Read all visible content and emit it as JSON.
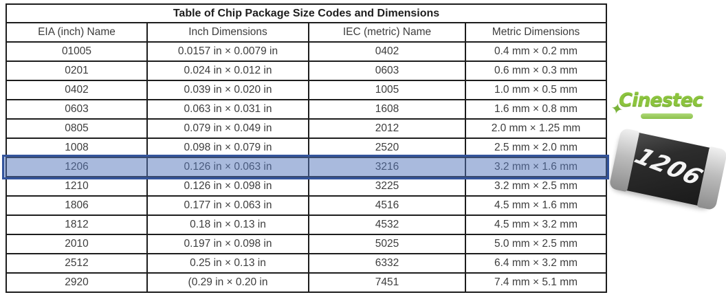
{
  "table": {
    "title": "Table of Chip Package Size Codes and Dimensions",
    "headers": [
      "EIA (inch) Name",
      "Inch Dimensions",
      "IEC (metric) Name",
      "Metric Dimensions"
    ],
    "rows": [
      [
        "01005",
        "0.0157 in × 0.0079 in",
        "0402",
        "0.4 mm × 0.2 mm"
      ],
      [
        "0201",
        "0.024 in × 0.012 in",
        "0603",
        "0.6 mm × 0.3 mm"
      ],
      [
        "0402",
        "0.039 in × 0.020 in",
        "1005",
        "1.0 mm × 0.5 mm"
      ],
      [
        "0603",
        "0.063 in × 0.031 in",
        "1608",
        "1.6 mm × 0.8 mm"
      ],
      [
        "0805",
        "0.079 in × 0.049 in",
        "2012",
        "2.0 mm × 1.25 mm"
      ],
      [
        "1008",
        "0.098 in × 0.079 in",
        "2520",
        "2.5 mm × 2.0 mm"
      ],
      [
        "1206",
        "0.126 in × 0.063 in",
        "3216",
        "3.2 mm × 1.6 mm"
      ],
      [
        "1210",
        "0.126 in × 0.098 in",
        "3225",
        "3.2 mm × 2.5 mm"
      ],
      [
        "1806",
        "0.177 in × 0.063 in",
        "4516",
        "4.5 mm × 1.6 mm"
      ],
      [
        "1812",
        "0.18 in × 0.13 in",
        "4532",
        "4.5 mm × 3.2 mm"
      ],
      [
        "2010",
        "0.197 in × 0.098 in",
        "5025",
        "5.0 mm × 2.5 mm"
      ],
      [
        "2512",
        "0.25 in × 0.13 in",
        "6332",
        "6.4 mm × 3.2 mm"
      ],
      [
        "2920",
        "(0.29 in × 0.20 in",
        "7451",
        "7.4 mm × 5.1 mm"
      ]
    ],
    "highlighted_row_index": 6
  },
  "highlight": {
    "fill_color": "#8ea9db",
    "border_color": "#33549c"
  },
  "logo": {
    "text": "Cinestec",
    "accent_color": "#8cc43e"
  },
  "chip": {
    "label": "1206",
    "body_color": "#222222",
    "terminal_color": "#bcbcbc"
  }
}
